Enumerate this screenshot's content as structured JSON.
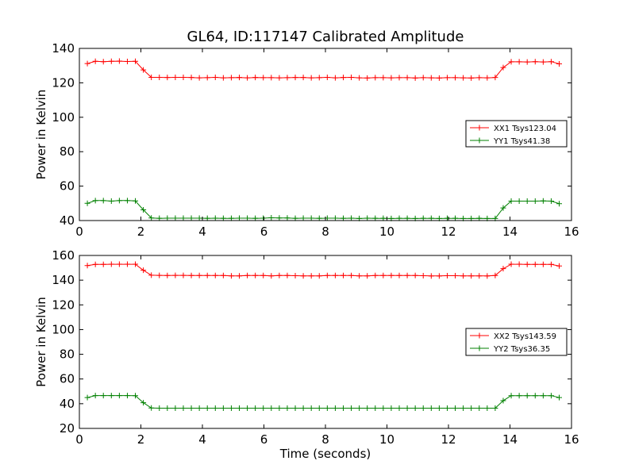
{
  "figure": {
    "title": "GL64, ID:117147 Calibrated Amplitude",
    "xlabel": "Time (seconds)"
  },
  "chart_data": [
    {
      "type": "line",
      "title": "GL64, ID:117147 Calibrated Amplitude",
      "xlabel": "",
      "ylabel": "Power in Kelvin",
      "xlim": [
        0,
        16
      ],
      "ylim": [
        40,
        140
      ],
      "xticks": [
        "0",
        "2",
        "4",
        "6",
        "8",
        "10",
        "12",
        "14",
        "16"
      ],
      "yticks": [
        "40",
        "60",
        "80",
        "100",
        "120",
        "140"
      ],
      "grid": false,
      "legend_position": "center-right",
      "x": [
        0.26,
        0.52,
        0.78,
        1.04,
        1.3,
        1.56,
        1.82,
        2.08,
        2.34,
        2.6,
        2.86,
        3.12,
        3.38,
        3.64,
        3.9,
        4.16,
        4.42,
        4.68,
        4.94,
        5.2,
        5.46,
        5.72,
        5.98,
        6.24,
        6.5,
        6.76,
        7.02,
        7.28,
        7.54,
        7.8,
        8.06,
        8.32,
        8.58,
        8.84,
        9.1,
        9.36,
        9.62,
        9.88,
        10.14,
        10.4,
        10.66,
        10.92,
        11.18,
        11.44,
        11.7,
        11.96,
        12.22,
        12.48,
        12.74,
        13.0,
        13.26,
        13.52,
        13.78,
        14.04,
        14.3,
        14.56,
        14.82,
        15.08,
        15.34,
        15.6
      ],
      "series": [
        {
          "name": "XX1 Tsys123.04",
          "color": "#ff0000",
          "values": [
            131.2,
            132.5,
            132.3,
            132.5,
            132.6,
            132.4,
            132.5,
            127.5,
            123.2,
            123.2,
            123.1,
            123.2,
            123.2,
            123.1,
            122.9,
            123.0,
            123.2,
            122.9,
            123.0,
            123.1,
            122.9,
            123.1,
            123.0,
            123.0,
            122.9,
            123.0,
            123.1,
            123.1,
            122.9,
            123.0,
            123.2,
            122.9,
            123.1,
            123.2,
            122.9,
            122.8,
            123.0,
            123.0,
            122.9,
            123.0,
            123.0,
            122.8,
            123.0,
            122.9,
            122.8,
            123.0,
            123.0,
            122.9,
            122.8,
            123.0,
            122.9,
            123.1,
            128.9,
            132.2,
            132.2,
            132.1,
            132.3,
            132.1,
            132.3,
            131.0
          ]
        },
        {
          "name": "YY1 Tsys41.38",
          "color": "#008000",
          "values": [
            50.0,
            51.6,
            51.6,
            51.3,
            51.6,
            51.6,
            51.4,
            46.2,
            41.5,
            41.3,
            41.4,
            41.4,
            41.4,
            41.4,
            41.4,
            41.3,
            41.4,
            41.3,
            41.3,
            41.4,
            41.4,
            41.3,
            41.4,
            41.6,
            41.5,
            41.5,
            41.3,
            41.4,
            41.4,
            41.3,
            41.4,
            41.4,
            41.3,
            41.4,
            41.2,
            41.4,
            41.3,
            41.3,
            41.2,
            41.3,
            41.3,
            41.2,
            41.3,
            41.3,
            41.2,
            41.3,
            41.3,
            41.2,
            41.2,
            41.3,
            41.2,
            41.2,
            47.3,
            51.3,
            51.3,
            51.3,
            51.3,
            51.4,
            51.3,
            49.8
          ]
        }
      ]
    },
    {
      "type": "line",
      "title": "",
      "xlabel": "Time (seconds)",
      "ylabel": "Power in Kelvin",
      "xlim": [
        0,
        16
      ],
      "ylim": [
        20,
        160
      ],
      "xticks": [
        "0",
        "2",
        "4",
        "6",
        "8",
        "10",
        "12",
        "14",
        "16"
      ],
      "yticks": [
        "20",
        "40",
        "60",
        "80",
        "100",
        "120",
        "140",
        "160"
      ],
      "grid": false,
      "legend_position": "center-right",
      "x": [
        0.26,
        0.52,
        0.78,
        1.04,
        1.3,
        1.56,
        1.82,
        2.08,
        2.34,
        2.6,
        2.86,
        3.12,
        3.38,
        3.64,
        3.9,
        4.16,
        4.42,
        4.68,
        4.94,
        5.2,
        5.46,
        5.72,
        5.98,
        6.24,
        6.5,
        6.76,
        7.02,
        7.28,
        7.54,
        7.8,
        8.06,
        8.32,
        8.58,
        8.84,
        9.1,
        9.36,
        9.62,
        9.88,
        10.14,
        10.4,
        10.66,
        10.92,
        11.18,
        11.44,
        11.7,
        11.96,
        12.22,
        12.48,
        12.74,
        13.0,
        13.26,
        13.52,
        13.78,
        14.04,
        14.3,
        14.56,
        14.82,
        15.08,
        15.34,
        15.6
      ],
      "series": [
        {
          "name": "XX2 Tsys143.59",
          "color": "#ff0000",
          "values": [
            151.8,
            152.8,
            152.8,
            152.9,
            152.9,
            152.9,
            152.9,
            148.0,
            144.0,
            143.9,
            143.8,
            143.9,
            143.9,
            143.8,
            143.8,
            143.8,
            143.8,
            143.8,
            143.5,
            143.5,
            143.8,
            143.8,
            143.8,
            143.5,
            143.8,
            143.8,
            143.6,
            143.5,
            143.5,
            143.5,
            143.8,
            143.8,
            143.8,
            143.8,
            143.5,
            143.5,
            143.8,
            143.8,
            143.8,
            143.8,
            143.8,
            143.8,
            143.6,
            143.4,
            143.4,
            143.6,
            143.6,
            143.5,
            143.5,
            143.5,
            143.4,
            143.8,
            149.3,
            152.9,
            152.9,
            152.8,
            152.8,
            152.8,
            152.8,
            151.5
          ]
        },
        {
          "name": "YY2 Tsys36.35",
          "color": "#008000",
          "values": [
            45.0,
            46.6,
            46.6,
            46.6,
            46.6,
            46.6,
            46.5,
            40.8,
            36.5,
            36.4,
            36.4,
            36.4,
            36.4,
            36.4,
            36.4,
            36.4,
            36.4,
            36.4,
            36.4,
            36.4,
            36.4,
            36.4,
            36.4,
            36.4,
            36.4,
            36.4,
            36.4,
            36.4,
            36.4,
            36.4,
            36.4,
            36.4,
            36.4,
            36.4,
            36.4,
            36.4,
            36.4,
            36.4,
            36.4,
            36.4,
            36.4,
            36.4,
            36.4,
            36.4,
            36.4,
            36.4,
            36.4,
            36.4,
            36.4,
            36.4,
            36.4,
            36.4,
            42.5,
            46.5,
            46.5,
            46.5,
            46.5,
            46.5,
            46.5,
            45.0
          ]
        }
      ]
    }
  ]
}
